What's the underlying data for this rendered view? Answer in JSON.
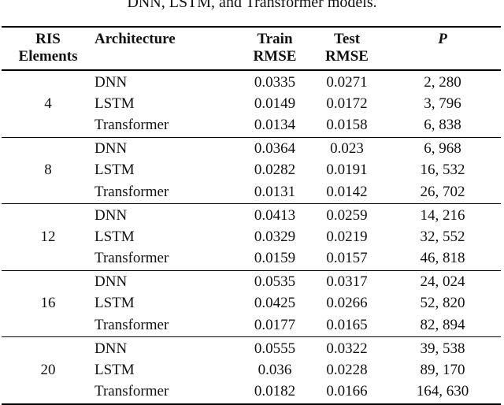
{
  "caption": "DNN, LSTM, and Transformer models.",
  "colors": {
    "text": "#111111",
    "rule": "#000000",
    "background": "#ffffff"
  },
  "table": {
    "headers": {
      "col1_line1": "RIS",
      "col1_line2": "Elements",
      "col2": "Architecture",
      "col3_line1": "Train",
      "col3_line2": "RMSE",
      "col4_line1": "Test",
      "col4_line2": "RMSE",
      "col5": "P"
    },
    "groups": [
      {
        "ris_elements": "4",
        "rows": [
          {
            "architecture": "DNN",
            "train_rmse": "0.0335",
            "test_rmse": "0.0271",
            "p": "2, 280"
          },
          {
            "architecture": "LSTM",
            "train_rmse": "0.0149",
            "test_rmse": "0.0172",
            "p": "3, 796"
          },
          {
            "architecture": "Transformer",
            "train_rmse": "0.0134",
            "test_rmse": "0.0158",
            "p": "6, 838"
          }
        ]
      },
      {
        "ris_elements": "8",
        "rows": [
          {
            "architecture": "DNN",
            "train_rmse": "0.0364",
            "test_rmse": "0.023",
            "p": "6, 968"
          },
          {
            "architecture": "LSTM",
            "train_rmse": "0.0282",
            "test_rmse": "0.0191",
            "p": "16, 532"
          },
          {
            "architecture": "Transformer",
            "train_rmse": "0.0131",
            "test_rmse": "0.0142",
            "p": "26, 702"
          }
        ]
      },
      {
        "ris_elements": "12",
        "rows": [
          {
            "architecture": "DNN",
            "train_rmse": "0.0413",
            "test_rmse": "0.0259",
            "p": "14, 216"
          },
          {
            "architecture": "LSTM",
            "train_rmse": "0.0329",
            "test_rmse": "0.0219",
            "p": "32, 552"
          },
          {
            "architecture": "Transformer",
            "train_rmse": "0.0159",
            "test_rmse": "0.0157",
            "p": "46, 818"
          }
        ]
      },
      {
        "ris_elements": "16",
        "rows": [
          {
            "architecture": "DNN",
            "train_rmse": "0.0535",
            "test_rmse": "0.0317",
            "p": "24, 024"
          },
          {
            "architecture": "LSTM",
            "train_rmse": "0.0425",
            "test_rmse": "0.0266",
            "p": "52, 820"
          },
          {
            "architecture": "Transformer",
            "train_rmse": "0.0177",
            "test_rmse": "0.0165",
            "p": "82, 894"
          }
        ]
      },
      {
        "ris_elements": "20",
        "rows": [
          {
            "architecture": "DNN",
            "train_rmse": "0.0555",
            "test_rmse": "0.0322",
            "p": "39, 538"
          },
          {
            "architecture": "LSTM",
            "train_rmse": "0.036",
            "test_rmse": "0.0228",
            "p": "89, 170"
          },
          {
            "architecture": "Transformer",
            "train_rmse": "0.0182",
            "test_rmse": "0.0166",
            "p": "164, 630"
          }
        ]
      }
    ]
  }
}
